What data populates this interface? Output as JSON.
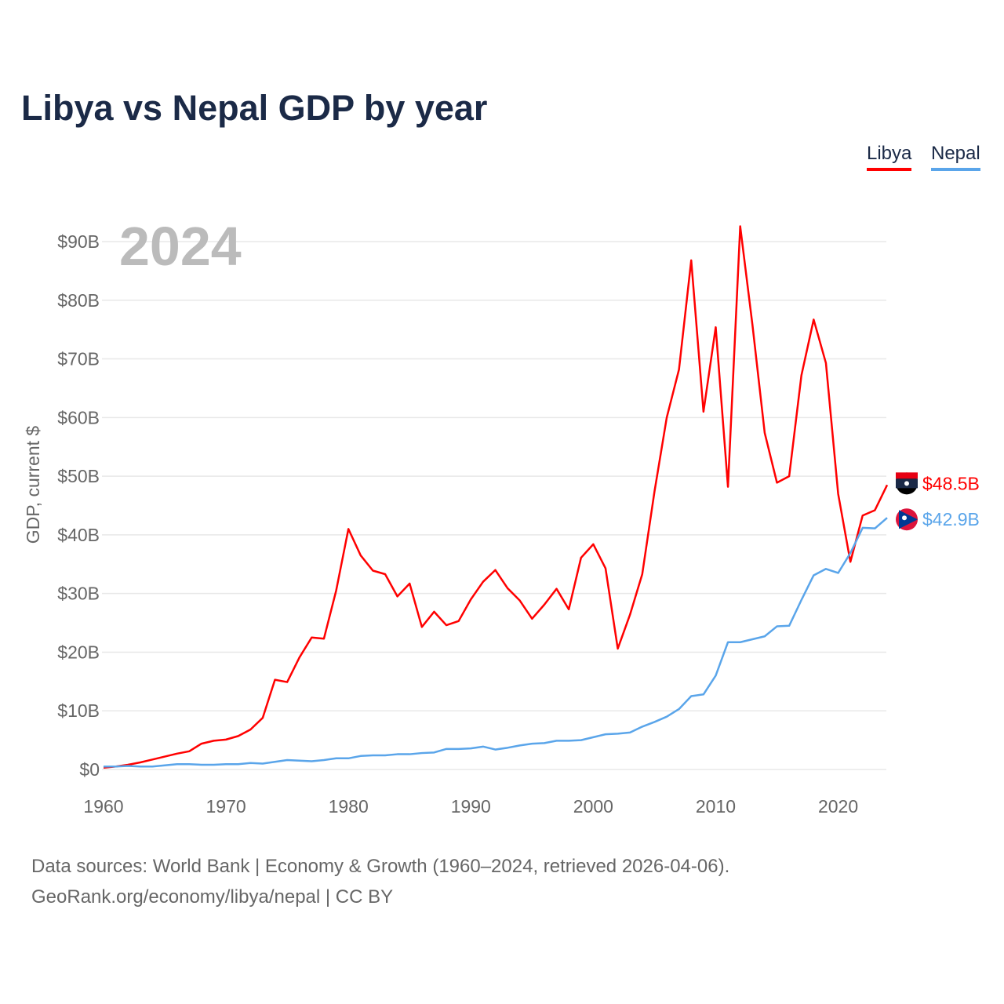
{
  "chart_data": {
    "type": "line",
    "title": "Libya vs Nepal GDP by year",
    "xlabel": "",
    "ylabel": "GDP, current $",
    "year_label": "2024",
    "xlim": [
      1960,
      2024
    ],
    "ylim": [
      0,
      90
    ],
    "x_ticks": [
      "1960",
      "1970",
      "1980",
      "1990",
      "2000",
      "2010",
      "2020"
    ],
    "y_ticks": [
      "$0",
      "$10B",
      "$20B",
      "$30B",
      "$40B",
      "$50B",
      "$60B",
      "$70B",
      "$80B",
      "$90B"
    ],
    "y_tick_values": [
      0,
      10,
      20,
      30,
      40,
      50,
      60,
      70,
      80,
      90
    ],
    "grid": true,
    "legend_position": "top-right",
    "x_start": 1960,
    "series": [
      {
        "name": "Libya",
        "color": "#ff0000",
        "end_label": "$48.5B",
        "values": [
          0.3,
          0.5,
          0.8,
          1.2,
          1.7,
          2.2,
          2.7,
          3.1,
          4.4,
          4.9,
          5.1,
          5.7,
          6.8,
          8.8,
          15.3,
          14.9,
          19.1,
          22.5,
          22.3,
          30.5,
          41.0,
          36.5,
          33.9,
          33.3,
          29.5,
          31.7,
          24.3,
          26.9,
          24.6,
          25.3,
          29.0,
          32.0,
          34.0,
          30.9,
          28.8,
          25.7,
          28.1,
          30.8,
          27.3,
          36.1,
          38.4,
          34.3,
          20.6,
          26.4,
          33.3,
          47.4,
          60.0,
          68.2,
          86.8,
          61.0,
          75.4,
          48.2,
          92.6,
          75.8,
          57.4,
          48.9,
          50.0,
          67.2,
          76.7,
          69.3,
          47.0,
          35.4,
          43.3,
          44.2,
          48.5
        ]
      },
      {
        "name": "Nepal",
        "color": "#5aa5ea",
        "end_label": "$42.9B",
        "values": [
          0.5,
          0.5,
          0.6,
          0.5,
          0.5,
          0.7,
          0.9,
          0.9,
          0.8,
          0.8,
          0.9,
          0.9,
          1.1,
          1.0,
          1.3,
          1.6,
          1.5,
          1.4,
          1.6,
          1.9,
          1.9,
          2.3,
          2.4,
          2.4,
          2.6,
          2.6,
          2.8,
          2.9,
          3.5,
          3.5,
          3.6,
          3.9,
          3.4,
          3.7,
          4.1,
          4.4,
          4.5,
          4.9,
          4.9,
          5.0,
          5.5,
          6.0,
          6.1,
          6.3,
          7.3,
          8.1,
          9.0,
          10.3,
          12.5,
          12.8,
          16.0,
          21.7,
          21.7,
          22.2,
          22.7,
          24.4,
          24.5,
          28.9,
          33.1,
          34.2,
          33.5,
          36.9,
          41.2,
          41.1,
          42.9
        ]
      }
    ]
  },
  "legend": {
    "libya": "Libya",
    "nepal": "Nepal"
  },
  "footer": {
    "line1": "Data sources: World Bank | Economy & Growth (1960–2024, retrieved 2026-04-06).",
    "line2": "GeoRank.org/economy/libya/nepal | CC BY"
  }
}
